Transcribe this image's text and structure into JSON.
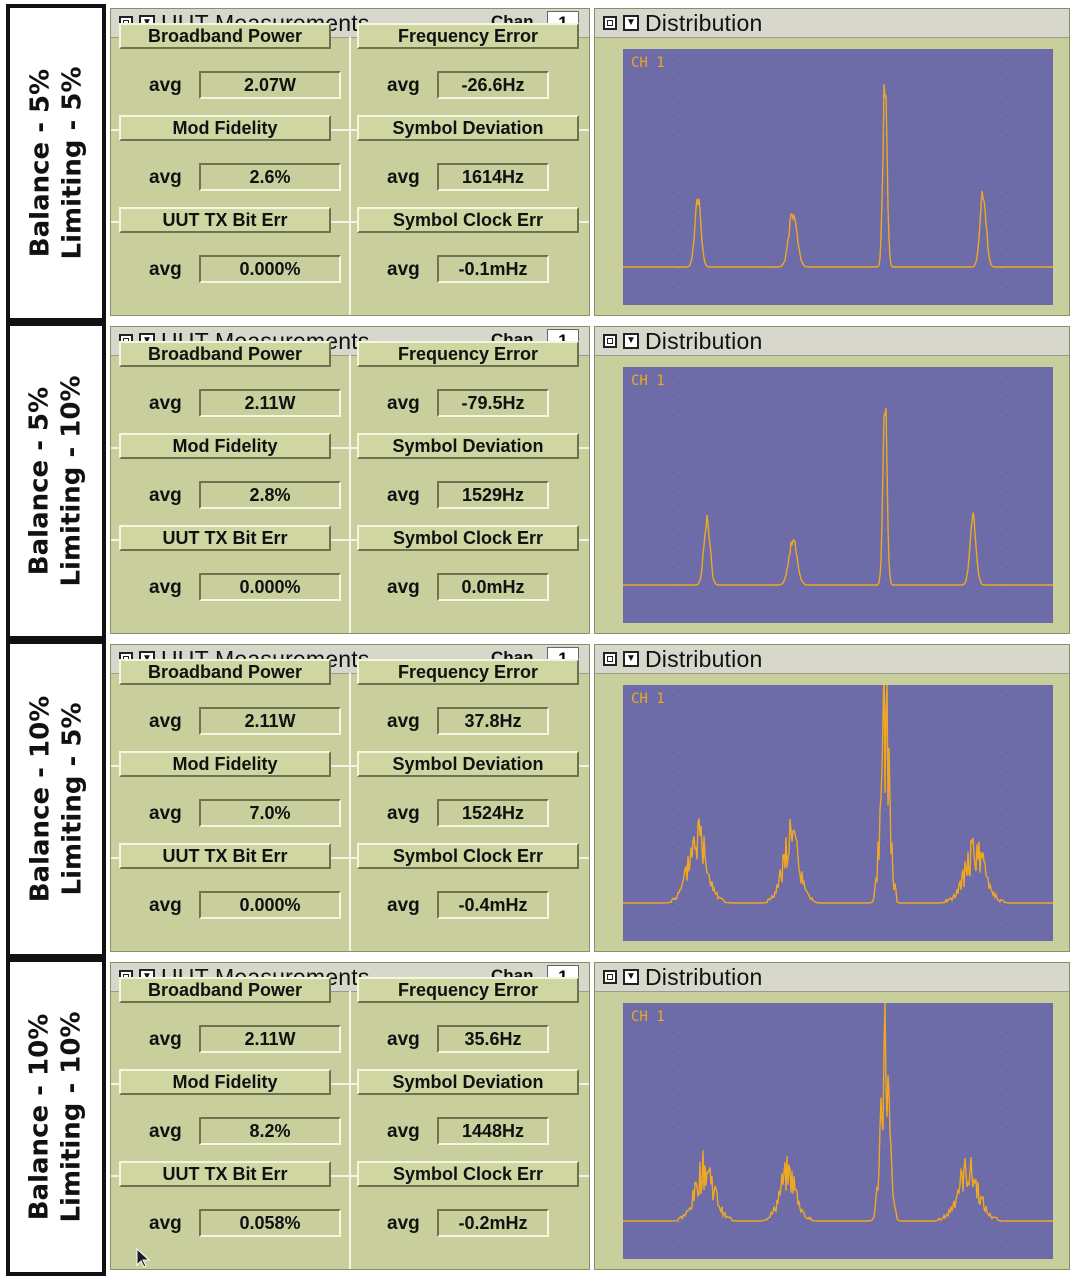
{
  "rows": [
    {
      "label_line1": "Balance - 5%",
      "label_line2": "Limiting - 5%",
      "meas_title": "UUT Measurements",
      "chan_label": "Chan",
      "chan_value": "1",
      "buttons": [
        "Broadband Power",
        "Frequency Error",
        "Mod Fidelity",
        "Symbol Deviation",
        "UUT TX Bit Err",
        "Symbol Clock Err"
      ],
      "avg_label": "avg",
      "values": [
        "2.07W",
        "-26.6Hz",
        "2.6%",
        "1614Hz",
        "0.000%",
        "-0.1mHz"
      ],
      "dist_title": "Distribution",
      "ch_label": "CH 1"
    },
    {
      "label_line1": "Balance - 5%",
      "label_line2": "Limiting - 10%",
      "meas_title": "UUT Measurements",
      "chan_label": "Chan",
      "chan_value": "1",
      "buttons": [
        "Broadband Power",
        "Frequency Error",
        "Mod Fidelity",
        "Symbol Deviation",
        "UUT TX Bit Err",
        "Symbol Clock Err"
      ],
      "avg_label": "avg",
      "values": [
        "2.11W",
        "-79.5Hz",
        "2.8%",
        "1529Hz",
        "0.000%",
        "0.0mHz"
      ],
      "dist_title": "Distribution",
      "ch_label": "CH 1"
    },
    {
      "label_line1": "Balance - 10%",
      "label_line2": "Limiting - 5%",
      "meas_title": "UUT Measurements",
      "chan_label": "Chan",
      "chan_value": "1",
      "buttons": [
        "Broadband Power",
        "Frequency Error",
        "Mod Fidelity",
        "Symbol Deviation",
        "UUT TX Bit Err",
        "Symbol Clock Err"
      ],
      "avg_label": "avg",
      "values": [
        "2.11W",
        "37.8Hz",
        "7.0%",
        "1524Hz",
        "0.000%",
        "-0.4mHz"
      ],
      "dist_title": "Distribution",
      "ch_label": "CH 1"
    },
    {
      "label_line1": "Balance - 10%",
      "label_line2": "Limiting - 10%",
      "meas_title": "UUT Measurements",
      "chan_label": "Chan",
      "chan_value": "1",
      "buttons": [
        "Broadband Power",
        "Frequency Error",
        "Mod Fidelity",
        "Symbol Deviation",
        "UUT TX Bit Err",
        "Symbol Clock Err"
      ],
      "avg_label": "avg",
      "values": [
        "2.11W",
        "35.6Hz",
        "8.2%",
        "1448Hz",
        "0.058%",
        "-0.2mHz"
      ],
      "dist_title": "Distribution",
      "ch_label": "CH 1"
    }
  ],
  "colors": {
    "panel_bg": "#c9cf9c",
    "plot_bg": "#6d6ba8",
    "trace": "#f0a820"
  },
  "icons": [
    "window-menu-icon",
    "dropdown-arrow-icon",
    "mouse-pointer-icon"
  ]
}
